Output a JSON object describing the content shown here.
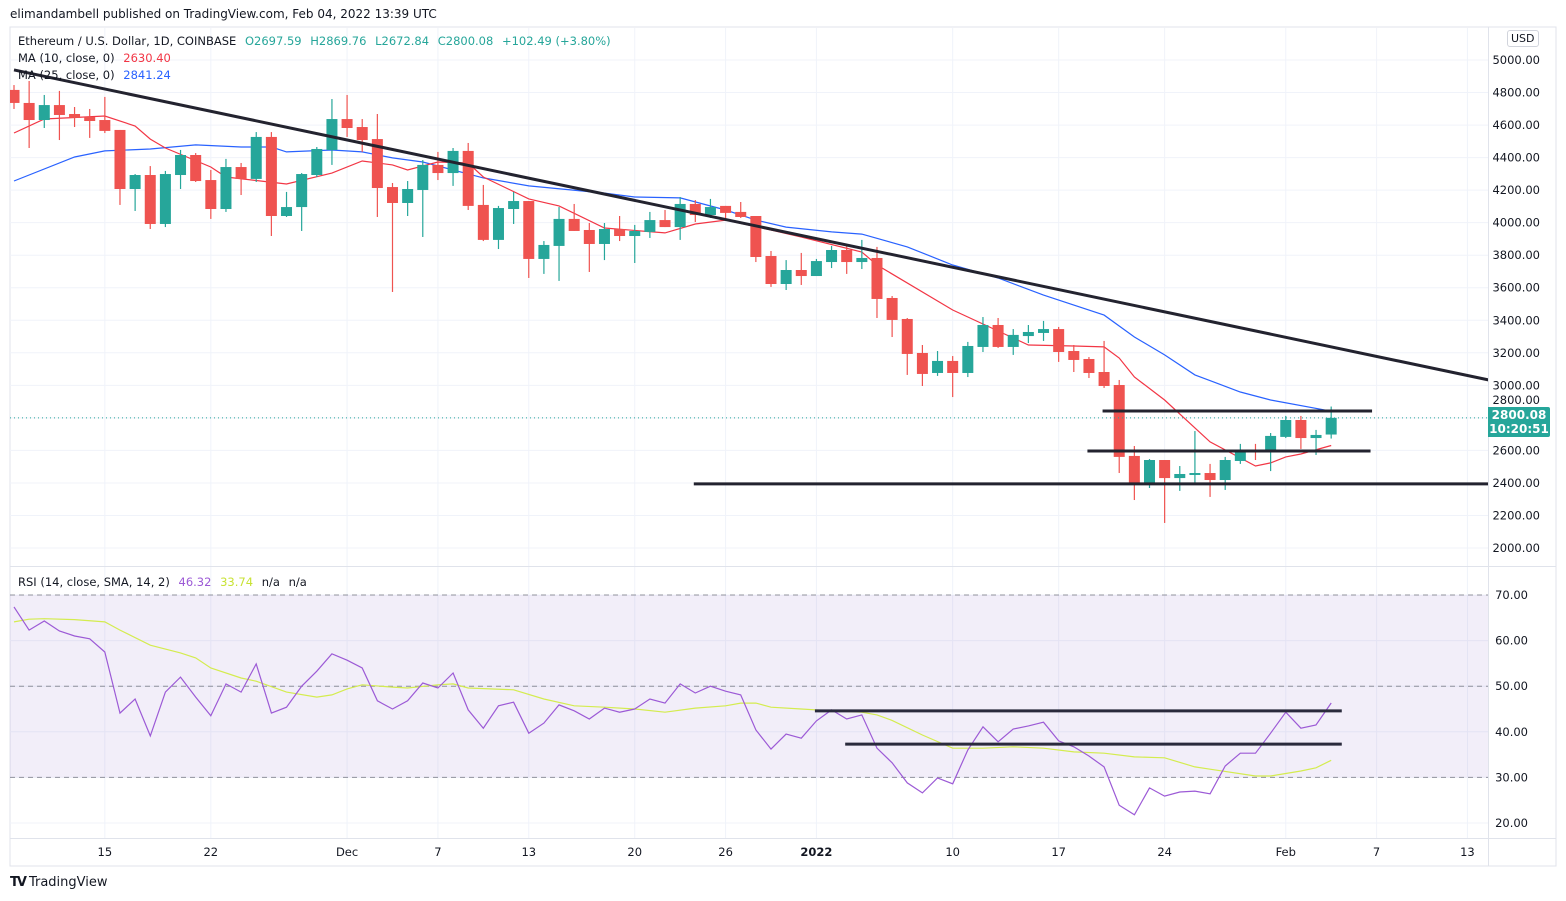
{
  "published": "elimandambell published on TradingView.com, Feb 04, 2022 13:39 UTC",
  "symbol": {
    "title": "Ethereum / U.S. Dollar, 1D, COINBASE",
    "open": "O2697.59",
    "high": "H2869.76",
    "low": "L2672.84",
    "close": "C2800.08",
    "change": "+102.49 (+3.80%)"
  },
  "ma10": {
    "label": "MA (10, close, 0)",
    "value": "2630.40",
    "color": "#f23645"
  },
  "ma25": {
    "label": "MA (25, close, 0)",
    "value": "2841.24",
    "color": "#2962ff"
  },
  "rsi": {
    "label": "RSI (14, close, SMA, 14, 2)",
    "value": "46.32",
    "sma_value": "33.74",
    "na1": "n/a",
    "na2": "n/a",
    "color": "#9c5ad6",
    "sma_color": "#d4ec4f"
  },
  "currency": "USD",
  "last_price": {
    "price": "2800.08",
    "countdown": "10:20:51"
  },
  "footer_brand": "TradingView",
  "colors": {
    "up": "#26a69a",
    "down": "#ef5350",
    "trendline": "#23232f"
  },
  "chart_data": {
    "type": "candlestick",
    "title": "Ethereum / U.S. Dollar, 1D, COINBASE",
    "x_unit": "trading day index (0 = Nov 9, 2021)",
    "ylim": [
      1900,
      5100
    ],
    "price_ticks": [
      "5000.00",
      "4800.00",
      "4600.00",
      "4400.00",
      "4200.00",
      "4000.00",
      "3800.00",
      "3600.00",
      "3400.00",
      "3200.00",
      "3000.00",
      "2800.00",
      "2600.00",
      "2400.00",
      "2200.00",
      "2000.00"
    ],
    "rsi_ticks": [
      "70.00",
      "60.00",
      "50.00",
      "40.00",
      "30.00",
      "20.00"
    ],
    "time_labels": [
      {
        "label": "15",
        "day": 6
      },
      {
        "label": "22",
        "day": 13
      },
      {
        "label": "Dec",
        "day": 22
      },
      {
        "label": "7",
        "day": 28
      },
      {
        "label": "13",
        "day": 34
      },
      {
        "label": "20",
        "day": 41
      },
      {
        "label": "26",
        "day": 47
      },
      {
        "label": "2022",
        "day": 53,
        "bold": true
      },
      {
        "label": "10",
        "day": 62
      },
      {
        "label": "17",
        "day": 69
      },
      {
        "label": "24",
        "day": 76
      },
      {
        "label": "Feb",
        "day": 84
      },
      {
        "label": "7",
        "day": 90
      },
      {
        "label": "13",
        "day": 96
      }
    ],
    "ohlc": [
      [
        4816,
        4846,
        4699,
        4736
      ],
      [
        4736,
        4871,
        4459,
        4631
      ],
      [
        4631,
        4785,
        4582,
        4723
      ],
      [
        4723,
        4810,
        4508,
        4662
      ],
      [
        4668,
        4711,
        4588,
        4644
      ],
      [
        4650,
        4699,
        4521,
        4625
      ],
      [
        4631,
        4773,
        4551,
        4564
      ],
      [
        4570,
        4570,
        4109,
        4207
      ],
      [
        4207,
        4299,
        4072,
        4293
      ],
      [
        4293,
        4348,
        3961,
        3992
      ],
      [
        3992,
        4318,
        3973,
        4299
      ],
      [
        4293,
        4447,
        4207,
        4416
      ],
      [
        4416,
        4428,
        4250,
        4256
      ],
      [
        4262,
        4324,
        4023,
        4084
      ],
      [
        4084,
        4392,
        4066,
        4342
      ],
      [
        4342,
        4367,
        4170,
        4269
      ],
      [
        4269,
        4557,
        4250,
        4527
      ],
      [
        4527,
        4557,
        3918,
        4041
      ],
      [
        4041,
        4189,
        4035,
        4096
      ],
      [
        4096,
        4305,
        3949,
        4299
      ],
      [
        4293,
        4465,
        4281,
        4453
      ],
      [
        4447,
        4760,
        4355,
        4637
      ],
      [
        4637,
        4785,
        4527,
        4582
      ],
      [
        4588,
        4637,
        4435,
        4508
      ],
      [
        4514,
        4668,
        4035,
        4213
      ],
      [
        4219,
        4244,
        3574,
        4121
      ],
      [
        4121,
        4256,
        4041,
        4207
      ],
      [
        4201,
        4385,
        3912,
        4355
      ],
      [
        4355,
        4435,
        4262,
        4305
      ],
      [
        4305,
        4459,
        4226,
        4441
      ],
      [
        4441,
        4490,
        4078,
        4103
      ],
      [
        4109,
        4232,
        3887,
        3894
      ],
      [
        3894,
        4103,
        3838,
        4090
      ],
      [
        4084,
        4189,
        3992,
        4133
      ],
      [
        4133,
        4133,
        3660,
        3777
      ],
      [
        3777,
        3887,
        3685,
        3863
      ],
      [
        3857,
        4096,
        3642,
        4023
      ],
      [
        4023,
        4115,
        3949,
        3949
      ],
      [
        3955,
        3998,
        3697,
        3869
      ],
      [
        3869,
        3998,
        3770,
        3961
      ],
      [
        3961,
        4041,
        3887,
        3918
      ],
      [
        3918,
        3986,
        3752,
        3949
      ],
      [
        3943,
        4066,
        3906,
        4016
      ],
      [
        4016,
        4078,
        3973,
        3973
      ],
      [
        3973,
        4158,
        3894,
        4115
      ],
      [
        4115,
        4139,
        4004,
        4047
      ],
      [
        4047,
        4146,
        4029,
        4096
      ],
      [
        4103,
        4103,
        4010,
        4060
      ],
      [
        4066,
        4127,
        4029,
        4035
      ],
      [
        4041,
        4041,
        3758,
        3789
      ],
      [
        3795,
        3826,
        3605,
        3623
      ],
      [
        3623,
        3770,
        3586,
        3709
      ],
      [
        3709,
        3814,
        3617,
        3672
      ],
      [
        3672,
        3777,
        3672,
        3764
      ],
      [
        3758,
        3857,
        3721,
        3832
      ],
      [
        3832,
        3857,
        3685,
        3758
      ],
      [
        3758,
        3894,
        3715,
        3783
      ],
      [
        3783,
        3851,
        3414,
        3531
      ],
      [
        3537,
        3549,
        3297,
        3402
      ],
      [
        3408,
        3414,
        3064,
        3193
      ],
      [
        3199,
        3248,
        2996,
        3070
      ],
      [
        3076,
        3211,
        3058,
        3150
      ],
      [
        3150,
        3180,
        2928,
        3076
      ],
      [
        3076,
        3267,
        3051,
        3242
      ],
      [
        3236,
        3420,
        3205,
        3371
      ],
      [
        3371,
        3414,
        3230,
        3236
      ],
      [
        3236,
        3346,
        3187,
        3310
      ],
      [
        3303,
        3371,
        3260,
        3328
      ],
      [
        3322,
        3396,
        3273,
        3346
      ],
      [
        3346,
        3359,
        3144,
        3205
      ],
      [
        3211,
        3248,
        3082,
        3156
      ],
      [
        3162,
        3174,
        3045,
        3076
      ],
      [
        3082,
        3273,
        2984,
        2996
      ],
      [
        3002,
        3033,
        2461,
        2560
      ],
      [
        2566,
        2627,
        2295,
        2400
      ],
      [
        2400,
        2547,
        2369,
        2541
      ],
      [
        2541,
        2541,
        2154,
        2430
      ],
      [
        2430,
        2504,
        2351,
        2455
      ],
      [
        2449,
        2719,
        2400,
        2461
      ],
      [
        2461,
        2517,
        2314,
        2418
      ],
      [
        2418,
        2560,
        2357,
        2541
      ],
      [
        2535,
        2640,
        2517,
        2603
      ],
      [
        2603,
        2640,
        2541,
        2596
      ],
      [
        2596,
        2707,
        2473,
        2689
      ],
      [
        2683,
        2812,
        2676,
        2787
      ],
      [
        2787,
        2812,
        2609,
        2676
      ],
      [
        2676,
        2726,
        2572,
        2695
      ],
      [
        2697.59,
        2869.76,
        2672.84,
        2800.08
      ]
    ],
    "ma10_points": [
      [
        0,
        4551
      ],
      [
        2,
        4637
      ],
      [
        6,
        4656
      ],
      [
        8,
        4594
      ],
      [
        9,
        4514
      ],
      [
        10,
        4459
      ],
      [
        13,
        4342
      ],
      [
        14,
        4281
      ],
      [
        18,
        4238
      ],
      [
        21,
        4305
      ],
      [
        23,
        4379
      ],
      [
        25,
        4355
      ],
      [
        26,
        4324
      ],
      [
        28,
        4373
      ],
      [
        30,
        4367
      ],
      [
        31,
        4281
      ],
      [
        34,
        4146
      ],
      [
        36,
        4103
      ],
      [
        39,
        3967
      ],
      [
        43,
        3937
      ],
      [
        45,
        3992
      ],
      [
        47,
        4016
      ],
      [
        50,
        3955
      ],
      [
        52,
        3912
      ],
      [
        56,
        3820
      ],
      [
        57,
        3740
      ],
      [
        62,
        3463
      ],
      [
        67,
        3248
      ],
      [
        70,
        3242
      ],
      [
        72,
        3236
      ],
      [
        73,
        3168
      ],
      [
        74,
        3051
      ],
      [
        76,
        2910
      ],
      [
        79,
        2652
      ],
      [
        82,
        2504
      ],
      [
        83,
        2523
      ],
      [
        84,
        2560
      ],
      [
        85,
        2578
      ],
      [
        87,
        2630.4
      ]
    ],
    "ma25_points": [
      [
        0,
        4256
      ],
      [
        4,
        4404
      ],
      [
        6,
        4441
      ],
      [
        9,
        4453
      ],
      [
        12,
        4478
      ],
      [
        15,
        4465
      ],
      [
        17,
        4465
      ],
      [
        18,
        4435
      ],
      [
        21,
        4447
      ],
      [
        23,
        4435
      ],
      [
        25,
        4398
      ],
      [
        27,
        4373
      ],
      [
        31,
        4275
      ],
      [
        34,
        4226
      ],
      [
        39,
        4182
      ],
      [
        41,
        4158
      ],
      [
        44,
        4152
      ],
      [
        47,
        4078
      ],
      [
        49,
        4016
      ],
      [
        51,
        3973
      ],
      [
        54,
        3943
      ],
      [
        56,
        3930
      ],
      [
        59,
        3851
      ],
      [
        62,
        3740
      ],
      [
        65,
        3660
      ],
      [
        68,
        3555
      ],
      [
        72,
        3432
      ],
      [
        74,
        3297
      ],
      [
        76,
        3187
      ],
      [
        78,
        3064
      ],
      [
        81,
        2959
      ],
      [
        83,
        2910
      ],
      [
        87,
        2841.24
      ]
    ],
    "rsi_values": [
      67.4,
      62.3,
      64.3,
      62.1,
      61.0,
      60.4,
      57.5,
      44.1,
      47.2,
      39.1,
      48.7,
      52.0,
      47.6,
      43.5,
      50.5,
      48.7,
      54.9,
      44.1,
      45.4,
      50.0,
      53.3,
      57.1,
      55.7,
      54.0,
      46.8,
      45.0,
      46.8,
      50.7,
      49.6,
      52.9,
      44.8,
      40.8,
      45.7,
      46.5,
      39.7,
      41.9,
      45.9,
      44.6,
      42.8,
      45.2,
      44.3,
      45.0,
      47.2,
      46.3,
      50.5,
      48.5,
      50.0,
      48.9,
      48.1,
      40.4,
      36.2,
      39.5,
      38.6,
      42.4,
      44.8,
      42.8,
      43.7,
      36.4,
      33.2,
      28.8,
      26.6,
      29.9,
      28.6,
      36.0,
      41.1,
      37.8,
      40.6,
      41.3,
      42.1,
      38.0,
      36.7,
      34.7,
      32.3,
      23.9,
      21.8,
      27.7,
      25.9,
      26.8,
      27.0,
      26.4,
      32.5,
      35.3,
      35.3,
      39.7,
      44.3,
      40.8,
      41.5,
      46.32
    ],
    "rsi_sma_points": [
      [
        0,
        64.1
      ],
      [
        1,
        64.7
      ],
      [
        2,
        64.8
      ],
      [
        4,
        64.6
      ],
      [
        6,
        64.1
      ],
      [
        7,
        62.3
      ],
      [
        9,
        59.0
      ],
      [
        11,
        57.3
      ],
      [
        12,
        56.2
      ],
      [
        13,
        54.0
      ],
      [
        15,
        51.8
      ],
      [
        16,
        51.1
      ],
      [
        18,
        48.7
      ],
      [
        20,
        47.6
      ],
      [
        21,
        48.1
      ],
      [
        22,
        49.4
      ],
      [
        23,
        50.3
      ],
      [
        25,
        49.8
      ],
      [
        26,
        49.6
      ],
      [
        28,
        50.3
      ],
      [
        29,
        50.5
      ],
      [
        30,
        49.6
      ],
      [
        33,
        49.2
      ],
      [
        35,
        47.2
      ],
      [
        37,
        45.7
      ],
      [
        39,
        45.4
      ],
      [
        41,
        45.0
      ],
      [
        43,
        44.3
      ],
      [
        45,
        45.2
      ],
      [
        47,
        45.7
      ],
      [
        48,
        46.3
      ],
      [
        49,
        46.3
      ],
      [
        50,
        45.4
      ],
      [
        52,
        45.0
      ],
      [
        54,
        44.6
      ],
      [
        56,
        44.3
      ],
      [
        57,
        43.7
      ],
      [
        58,
        42.5
      ],
      [
        60,
        39.3
      ],
      [
        62,
        36.4
      ],
      [
        64,
        36.4
      ],
      [
        66,
        36.7
      ],
      [
        68,
        36.4
      ],
      [
        70,
        35.6
      ],
      [
        72,
        35.3
      ],
      [
        74,
        34.5
      ],
      [
        76,
        34.3
      ],
      [
        78,
        32.3
      ],
      [
        79,
        31.8
      ],
      [
        82,
        30.3
      ],
      [
        83,
        30.3
      ],
      [
        85,
        31.4
      ],
      [
        86,
        32.1
      ],
      [
        87,
        33.74
      ]
    ],
    "rsi_band": [
      30,
      70
    ],
    "rsi_midline": 50,
    "drawings": {
      "price_trendline": {
        "from": [
          0,
          4939
        ],
        "to": [
          97.4,
          3033
        ]
      },
      "price_hlines": [
        {
          "from_day": 71.9,
          "to_day": 89.7,
          "price": 2842
        },
        {
          "from_day": 70.9,
          "to_day": 89.6,
          "price": 2596
        },
        {
          "from_day": 44.9,
          "to_day": 97.4,
          "price": 2394
        }
      ],
      "rsi_hlines": [
        {
          "from_day": 52.9,
          "to_day": 87.7,
          "value": 44.6
        },
        {
          "from_day": 54.9,
          "to_day": 87.7,
          "value": 37.3
        }
      ]
    }
  }
}
